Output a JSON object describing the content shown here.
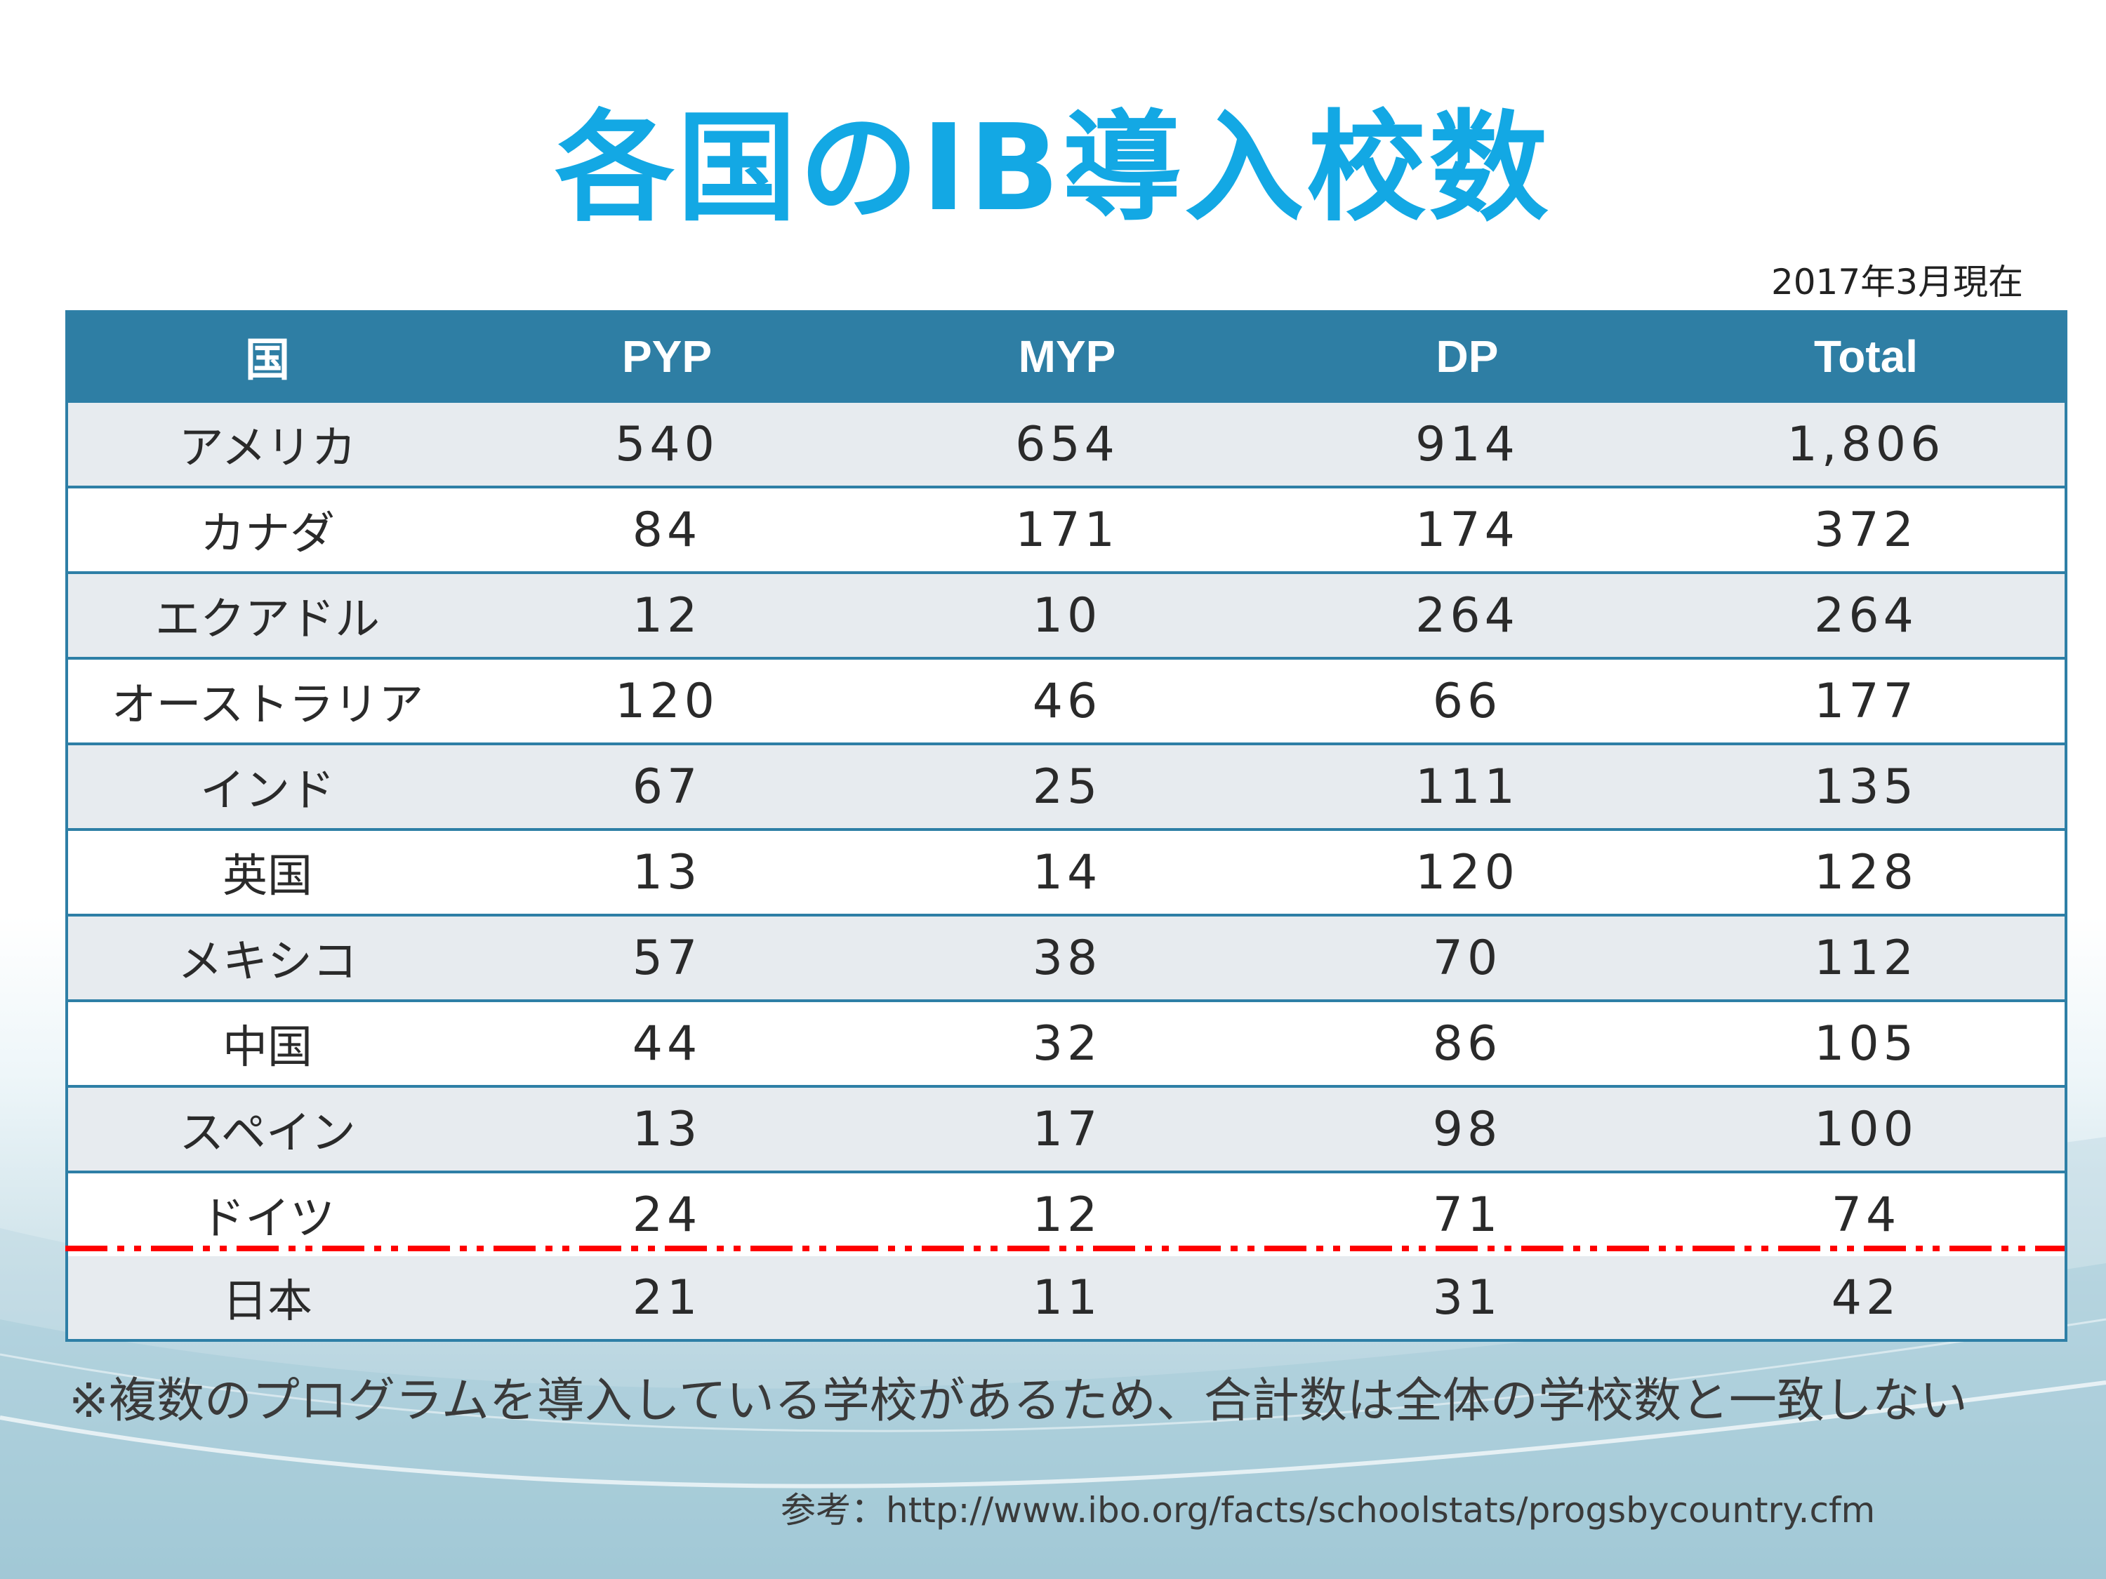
{
  "title": "各国のIB導入校数",
  "date_note": "2017年3月現在",
  "table": {
    "headers": [
      "国",
      "PYP",
      "MYP",
      "DP",
      "Total"
    ],
    "rows": [
      [
        "アメリカ",
        "540",
        "654",
        "914",
        "1,806"
      ],
      [
        "カナダ",
        "84",
        "171",
        "174",
        "372"
      ],
      [
        "エクアドル",
        "12",
        "10",
        "264",
        "264"
      ],
      [
        "オーストラリア",
        "120",
        "46",
        "66",
        "177"
      ],
      [
        "インド",
        "67",
        "25",
        "111",
        "135"
      ],
      [
        "英国",
        "13",
        "14",
        "120",
        "128"
      ],
      [
        "メキシコ",
        "57",
        "38",
        "70",
        "112"
      ],
      [
        "中国",
        "44",
        "32",
        "86",
        "105"
      ],
      [
        "スペイン",
        "13",
        "17",
        "98",
        "100"
      ],
      [
        "ドイツ",
        "24",
        "12",
        "71",
        "74"
      ],
      [
        "日本",
        "21",
        "11",
        "31",
        "42"
      ]
    ]
  },
  "footnote": "※複数のプログラムを導入している学校があるため、合計数は全体の学校数と一致しない",
  "source": "参考：http://www.ibo.org/facts/schoolstats/progsbycountry.cfm",
  "colors": {
    "title": "#13a8e4",
    "header_bg": "#2e7ea4",
    "alt_row_bg": "#e7ebef",
    "cutoff_line": "#ff0000"
  }
}
